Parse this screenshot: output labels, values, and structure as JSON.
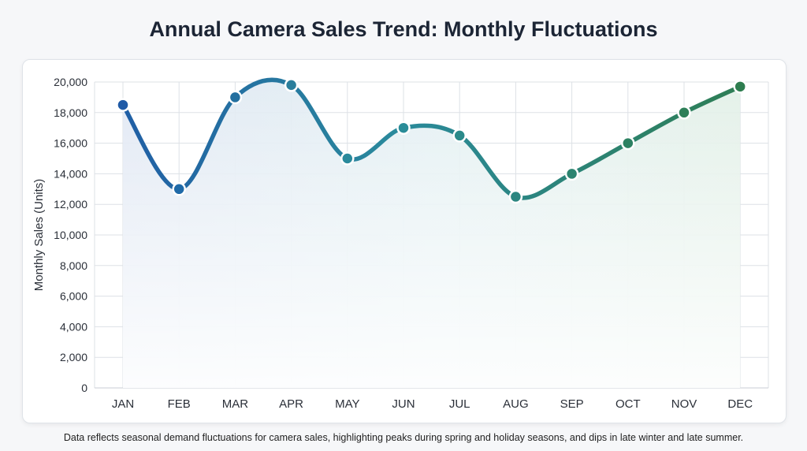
{
  "chart_data": {
    "type": "line",
    "title": "Annual Camera Sales Trend: Monthly Fluctuations",
    "xlabel": "",
    "ylabel": "Monthly Sales (Units)",
    "categories": [
      "JAN",
      "FEB",
      "MAR",
      "APR",
      "MAY",
      "JUN",
      "JUL",
      "AUG",
      "SEP",
      "OCT",
      "NOV",
      "DEC"
    ],
    "series": [
      {
        "values": [
          18500,
          13000,
          19000,
          19800,
          15000,
          17000,
          16500,
          12500,
          14000,
          16000,
          18000,
          19700
        ]
      }
    ],
    "ylim": [
      0,
      20000
    ],
    "yticks": [
      0,
      2000,
      4000,
      6000,
      8000,
      10000,
      12000,
      14000,
      16000,
      18000,
      20000
    ],
    "ytick_labels": [
      "0",
      "2,000",
      "4,000",
      "6,000",
      "8,000",
      "10,000",
      "12,000",
      "14,000",
      "16,000",
      "18,000",
      "20,000"
    ],
    "grid": true,
    "smooth": true,
    "area_fill": true,
    "colors": {
      "start": "#1f5aa6",
      "mid": "#2a8a9c",
      "end": "#2e7d4f"
    },
    "caption": "Data reflects seasonal demand fluctuations for camera sales, highlighting peaks during spring and holiday seasons, and dips in late winter and late summer."
  }
}
